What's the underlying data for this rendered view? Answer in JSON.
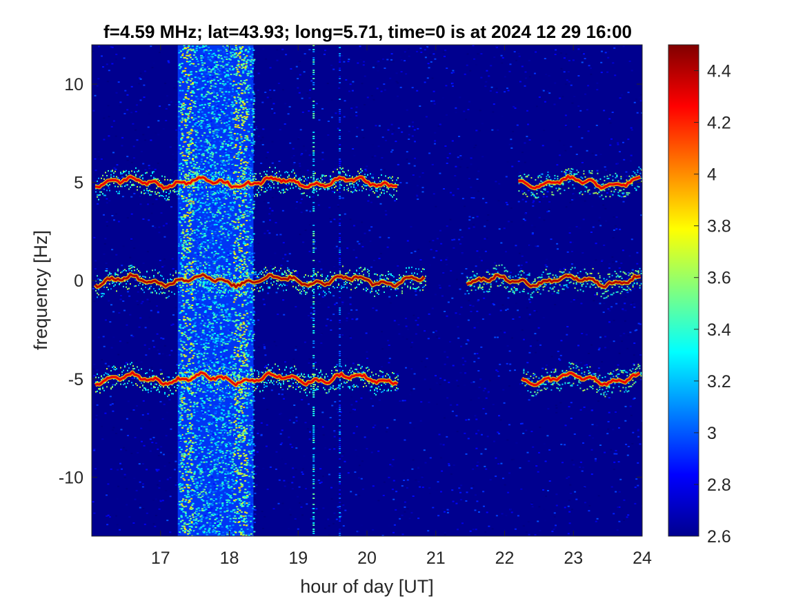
{
  "chart_data": {
    "type": "heatmap",
    "title": "f=4.59 MHz;  lat=43.93; long=5.71, time=0 is at 2024 12 29 16:00",
    "xlabel": "hour of day [UT]",
    "ylabel": "frequency [Hz]",
    "xlim": [
      16,
      24
    ],
    "ylim": [
      -13,
      12
    ],
    "xticks": [
      "17",
      "18",
      "19",
      "20",
      "21",
      "22",
      "23",
      "24"
    ],
    "xtick_values": [
      17,
      18,
      19,
      20,
      21,
      22,
      23,
      24
    ],
    "yticks": [
      "-10",
      "-5",
      "0",
      "5",
      "10"
    ],
    "ytick_values": [
      -10,
      -5,
      0,
      5,
      10
    ],
    "colorbar": {
      "range": [
        2.6,
        4.5
      ],
      "ticks": [
        "2.6",
        "2.8",
        "3",
        "3.2",
        "3.4",
        "3.6",
        "3.8",
        "4",
        "4.2",
        "4.4"
      ],
      "tick_values": [
        2.6,
        2.8,
        3.0,
        3.2,
        3.4,
        3.6,
        3.8,
        4.0,
        4.2,
        4.4
      ],
      "colormap": "jet"
    },
    "background_level": 2.7,
    "features": {
      "broadband_band": {
        "x_start": 17.25,
        "x_end": 18.35,
        "level": 3.2
      },
      "impulse_lines": [
        {
          "x": 19.22,
          "level": 3.3
        },
        {
          "x": 19.6,
          "level": 2.95
        }
      ],
      "traces": [
        {
          "y_center": 5,
          "segments": [
            [
              16.05,
              20.45
            ],
            [
              22.2,
              23.99
            ]
          ],
          "level": 4.3
        },
        {
          "y_center": 0,
          "segments": [
            [
              16.05,
              20.85
            ],
            [
              21.45,
              23.99
            ]
          ],
          "level": 4.4
        },
        {
          "y_center": -5,
          "segments": [
            [
              16.05,
              20.45
            ],
            [
              22.25,
              23.99
            ]
          ],
          "level": 4.3
        }
      ]
    }
  },
  "colors": {
    "background": "#00008f",
    "axis": "#262626"
  }
}
